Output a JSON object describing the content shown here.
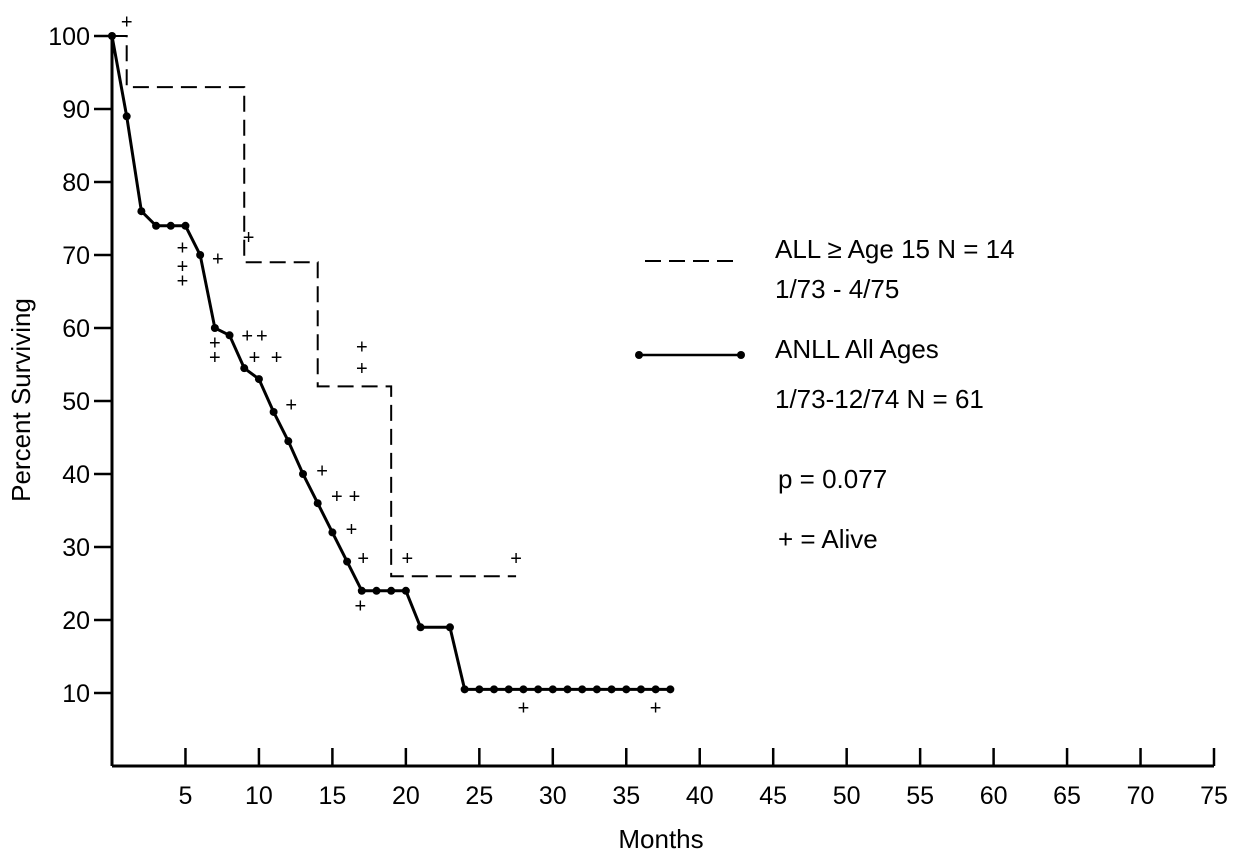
{
  "chart_data": {
    "type": "line",
    "title": "",
    "xlabel": "Months",
    "ylabel": "Percent Surviving",
    "xlim": [
      0,
      75
    ],
    "ylim": [
      0,
      100
    ],
    "x_ticks": [
      5,
      10,
      15,
      20,
      25,
      30,
      35,
      40,
      45,
      50,
      55,
      60,
      65,
      70,
      75
    ],
    "y_ticks": [
      10,
      20,
      30,
      40,
      50,
      60,
      70,
      80,
      90,
      100
    ],
    "grid": false,
    "legend_position": "right",
    "legend": {
      "all_line1": "ALL ≥ Age 15  N = 14",
      "all_line2": "1/73 - 4/75",
      "anll_line1": "ANLL All Ages",
      "anll_line2": "1/73-12/74  N = 61",
      "pvalue": "p = 0.077",
      "censor_note": "+ = Alive"
    },
    "censor_symbol": "+",
    "series": [
      {
        "name": "ALL ≥ Age 15  N = 14",
        "style": "dashed-step",
        "x": [
          0,
          1,
          6,
          9,
          12,
          14,
          18,
          19,
          27.5
        ],
        "y": [
          100,
          93,
          93,
          69,
          69,
          52,
          52,
          26,
          26
        ],
        "censored": [
          [
            1,
            102
          ],
          [
            9.3,
            72.5
          ],
          [
            17,
            57.5
          ],
          [
            17,
            54.5
          ],
          [
            20.1,
            28.5
          ],
          [
            27.5,
            28.5
          ]
        ]
      },
      {
        "name": "ANLL All Ages 1/73-12/74  N = 61",
        "style": "solid-dots",
        "points": [
          [
            0,
            100
          ],
          [
            1,
            89
          ],
          [
            2,
            76
          ],
          [
            3,
            74
          ],
          [
            4,
            74
          ],
          [
            5,
            74
          ],
          [
            6,
            70
          ],
          [
            7,
            60
          ],
          [
            8,
            59
          ],
          [
            9,
            54.5
          ],
          [
            10,
            53
          ],
          [
            11,
            48.5
          ],
          [
            12,
            44.5
          ],
          [
            13,
            40
          ],
          [
            14,
            36
          ],
          [
            15,
            32
          ],
          [
            16,
            28
          ],
          [
            17,
            24
          ],
          [
            18,
            24
          ],
          [
            19,
            24
          ],
          [
            20,
            24
          ],
          [
            21,
            19
          ],
          [
            23,
            19
          ],
          [
            24,
            10.5
          ],
          [
            25,
            10.5
          ],
          [
            26,
            10.5
          ],
          [
            27,
            10.5
          ],
          [
            28,
            10.5
          ],
          [
            29,
            10.5
          ],
          [
            30,
            10.5
          ],
          [
            31,
            10.5
          ],
          [
            32,
            10.5
          ],
          [
            33,
            10.5
          ],
          [
            34,
            10.5
          ],
          [
            35,
            10.5
          ],
          [
            36,
            10.5
          ],
          [
            37,
            10.5
          ],
          [
            38,
            10.5
          ]
        ],
        "censored": [
          [
            4.8,
            71
          ],
          [
            4.8,
            68.5
          ],
          [
            4.8,
            66.5
          ],
          [
            7.2,
            69.5
          ],
          [
            7,
            58
          ],
          [
            7,
            56
          ],
          [
            9.2,
            59
          ],
          [
            10.2,
            59
          ],
          [
            9.7,
            56
          ],
          [
            11.2,
            56
          ],
          [
            12.2,
            49.5
          ],
          [
            14.3,
            40.5
          ],
          [
            15.3,
            37
          ],
          [
            16.5,
            37
          ],
          [
            16.3,
            32.5
          ],
          [
            17.1,
            28.5
          ],
          [
            16.9,
            22
          ],
          [
            28,
            8
          ],
          [
            37,
            8
          ]
        ]
      }
    ]
  }
}
